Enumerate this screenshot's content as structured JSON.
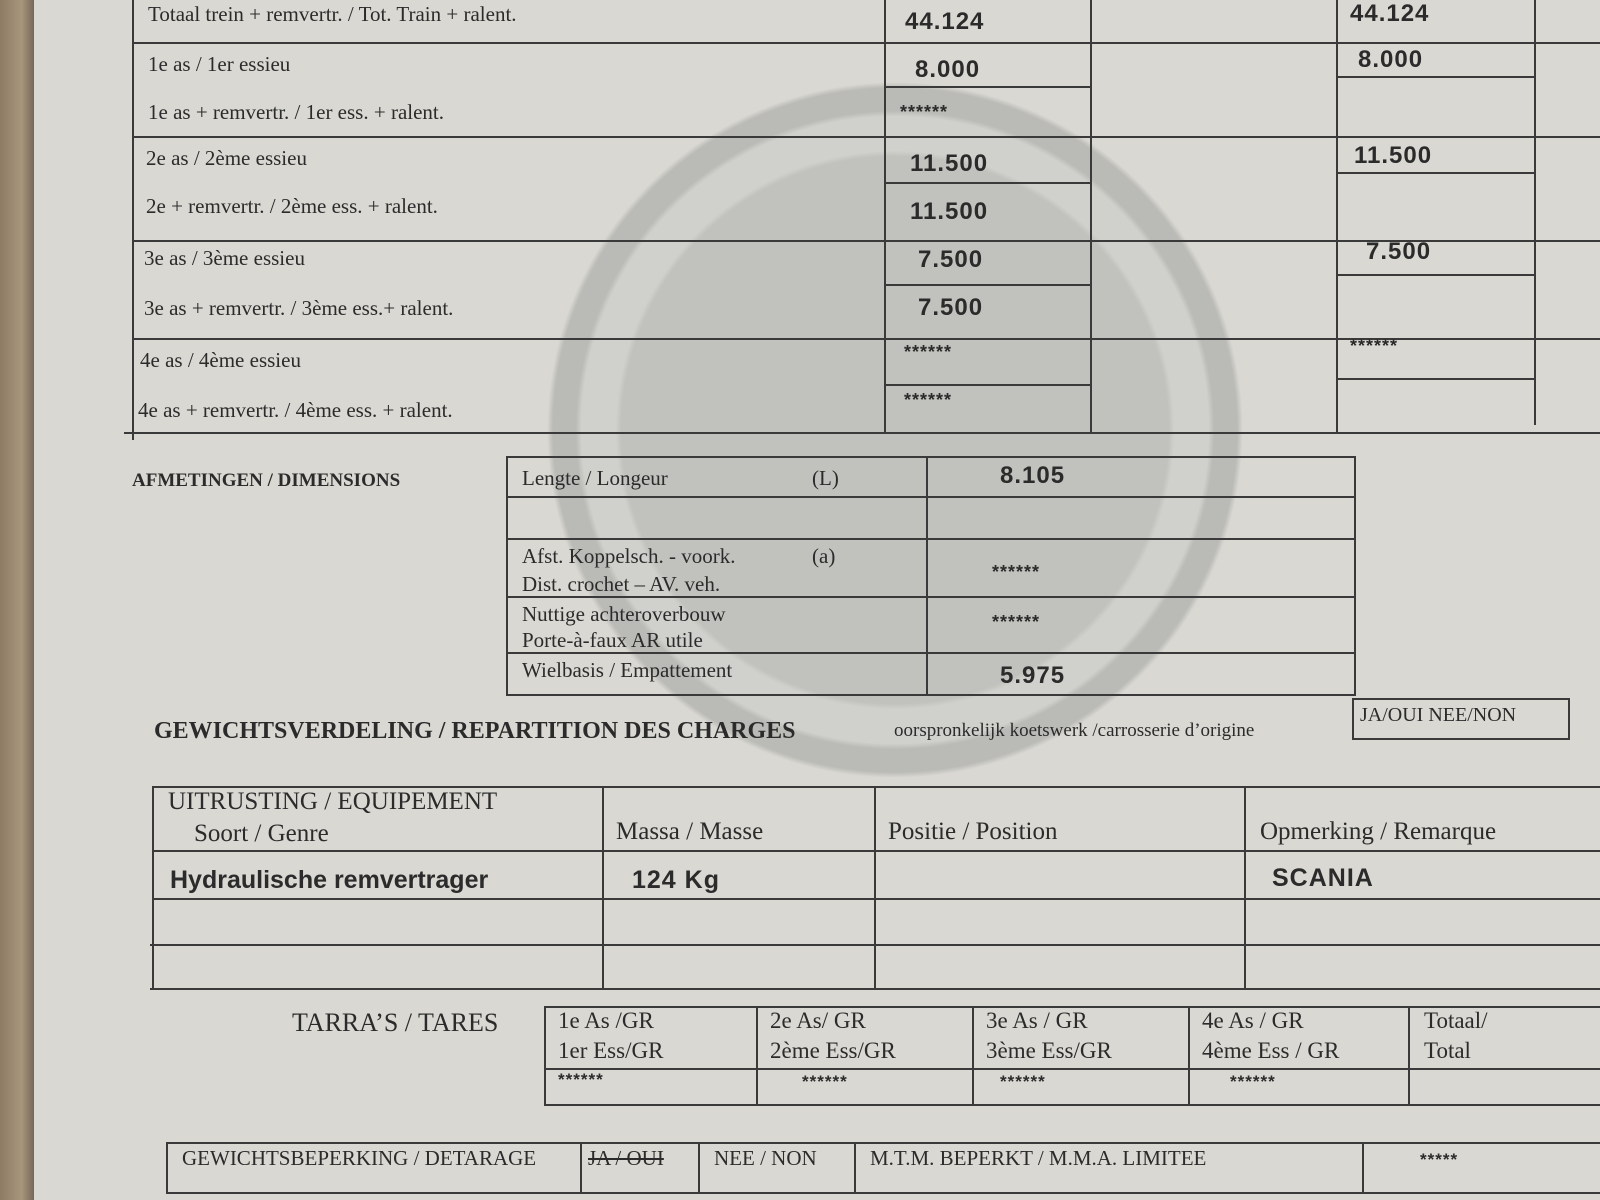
{
  "axle_loads": {
    "rows": [
      {
        "label": "Totaal trein + remvertr. / Tot. Train + ralent.",
        "value": "44.124",
        "value2": "44.124"
      },
      {
        "label": "1e as / 1er essieu",
        "value": "8.000",
        "value2": "8.000"
      },
      {
        "label": "1e as + remvertr. / 1er ess. + ralent.",
        "value": "******",
        "value2": ""
      },
      {
        "label": "2e as / 2ème essieu",
        "value": "11.500",
        "value2": "11.500"
      },
      {
        "label": "2e + remvertr. / 2ème ess. + ralent.",
        "value": "11.500",
        "value2": ""
      },
      {
        "label": "3e as / 3ème essieu",
        "value": "7.500",
        "value2": "7.500"
      },
      {
        "label": "3e as + remvertr. / 3ème ess.+ ralent.",
        "value": "7.500",
        "value2": ""
      },
      {
        "label": "4e as / 4ème essieu",
        "value": "******",
        "value2": "******"
      },
      {
        "label": "4e as + remvertr. / 4ème ess. + ralent.",
        "value": "******",
        "value2": ""
      }
    ]
  },
  "dimensions": {
    "title": "AFMETINGEN / DIMENSIONS",
    "rows": [
      {
        "label": "Lengte / Longeur",
        "code": "(L)",
        "value": "8.105"
      },
      {
        "label": "",
        "code": "",
        "value": ""
      },
      {
        "label": "Afst. Koppelsch. - voork.",
        "label2": "Dist. crochet – AV. veh.",
        "code": "(a)",
        "value": "******"
      },
      {
        "label": "Nuttige achteroverbouw",
        "label2": "Porte-à-faux AR utile",
        "code": "",
        "value": "******"
      },
      {
        "label": "Wielbasis / Empattement",
        "code": "",
        "value": "5.975"
      }
    ]
  },
  "distribution": {
    "title": "GEWICHTSVERDELING / REPARTITION DES CHARGES",
    "note": "oorspronkelijk koetswerk /carrosserie d’origine",
    "choice": "JA/OUI NEE/NON"
  },
  "equipment": {
    "headers": [
      "UITRUSTING / EQUIPEMENT",
      "Soort / Genre",
      "Massa / Masse",
      "Positie / Position",
      "Opmerking / Remarque"
    ],
    "rows": [
      [
        "Hydraulische remvertrager",
        "124 Kg",
        "",
        "SCANIA"
      ],
      [
        "",
        "",
        "",
        ""
      ],
      [
        "",
        "",
        "",
        ""
      ]
    ]
  },
  "tares": {
    "title": "TARRA’S / TARES",
    "headers": [
      [
        "1e As /GR",
        "1er Ess/GR"
      ],
      [
        "2e As/ GR",
        "2ème Ess/GR"
      ],
      [
        "3e As / GR",
        "3ème Ess/GR"
      ],
      [
        "4e As / GR",
        "4ème Ess / GR"
      ],
      [
        "Totaal/",
        "Total"
      ]
    ],
    "values": [
      "******",
      "******",
      "******",
      "******",
      ""
    ]
  },
  "detarage": {
    "label": "GEWICHTSBEPERKING / DETARAGE",
    "yes": "JA / OUI",
    "no": "NEE / NON",
    "mma": "M.T.M. BEPERKT / M.M.A. LIMITEE",
    "mma_value": "*****"
  }
}
